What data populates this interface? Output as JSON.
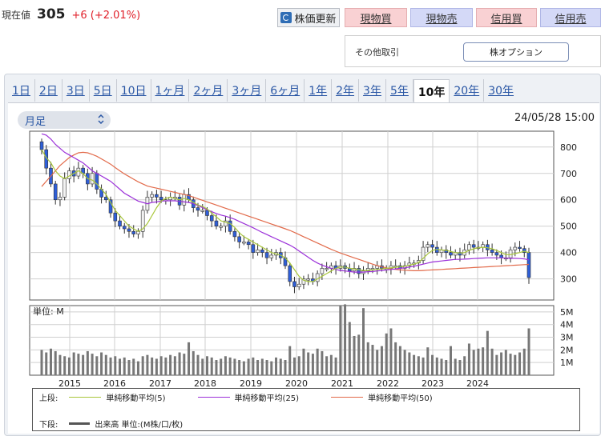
{
  "price": {
    "label": "現在値",
    "value": "305",
    "change": "+6 (+2.01%)"
  },
  "actions": {
    "refresh": "株価更新",
    "buy_spot": "現物買",
    "sell_spot": "現物売",
    "buy_margin": "信用買",
    "sell_margin": "信用売"
  },
  "other": {
    "label": "その他取引",
    "option_button": "株オプション"
  },
  "tabs": [
    "1日",
    "2日",
    "3日",
    "5日",
    "10日",
    "1ヶ月",
    "2ヶ月",
    "3ヶ月",
    "6ヶ月",
    "1年",
    "2年",
    "3年",
    "5年",
    "10年",
    "20年",
    "30年"
  ],
  "active_tab": "10年",
  "period_select": "月足",
  "datetime": "24/05/28 15:00",
  "volume_unit_label": "単位: M",
  "legend": {
    "upper_label": "上段:",
    "lower_label": "下段:",
    "ma5": "単純移動平均(5)",
    "ma25": "単純移動平均(25)",
    "ma50": "単純移動平均(50)",
    "volume": "出来高 単位:(M株/口/枚)"
  },
  "colors": {
    "ma5": "#a8c63a",
    "ma25": "#9b30d9",
    "ma50": "#e26a4a",
    "up": "#f2f2f2",
    "down": "#2f5fd8",
    "volume": "#777777"
  },
  "chart_data": {
    "type": "candlestick",
    "x_ticks": [
      "2015",
      "2016",
      "2017",
      "2018",
      "2019",
      "2020",
      "2021",
      "2022",
      "2023",
      "2024"
    ],
    "price_axis": {
      "ticks": [
        300,
        400,
        500,
        600,
        700,
        800
      ],
      "range": [
        220,
        860
      ]
    },
    "volume_axis": {
      "ticks": [
        "1M",
        "2M",
        "3M",
        "4M",
        "5M"
      ],
      "range": [
        0,
        5.5
      ]
    },
    "monthly_close": [
      790,
      720,
      660,
      600,
      610,
      680,
      710,
      690,
      720,
      700,
      660,
      700,
      640,
      610,
      600,
      550,
      520,
      500,
      490,
      480,
      470,
      480,
      560,
      610,
      620,
      610,
      600,
      600,
      610,
      610,
      580,
      620,
      600,
      570,
      560,
      560,
      540,
      520,
      500,
      500,
      520,
      480,
      460,
      440,
      440,
      430,
      400,
      410,
      400,
      380,
      390,
      400,
      380,
      350,
      290,
      270,
      280,
      300,
      300,
      290,
      320,
      340,
      340,
      350,
      340,
      350,
      340,
      330,
      340,
      320,
      330,
      340,
      340,
      350,
      340,
      340,
      350,
      350,
      340,
      350,
      360,
      360,
      370,
      420,
      430,
      420,
      400,
      410,
      400,
      390,
      400,
      390,
      410,
      430,
      420,
      420,
      430,
      410,
      400,
      390,
      380,
      380,
      410,
      420,
      415,
      400,
      305
    ],
    "ma5": [
      790,
      760,
      740,
      710,
      690,
      680,
      690,
      700,
      710,
      700,
      680,
      675,
      660,
      640,
      620,
      590,
      560,
      540,
      520,
      500,
      490,
      480,
      490,
      510,
      540,
      570,
      595,
      605,
      610,
      605,
      600,
      605,
      600,
      590,
      580,
      575,
      565,
      550,
      535,
      520,
      515,
      510,
      495,
      475,
      460,
      450,
      440,
      430,
      420,
      410,
      400,
      395,
      390,
      380,
      360,
      335,
      310,
      295,
      290,
      290,
      300,
      310,
      320,
      330,
      340,
      345,
      345,
      340,
      338,
      335,
      332,
      332,
      334,
      336,
      338,
      340,
      342,
      344,
      346,
      348,
      352,
      356,
      362,
      378,
      395,
      408,
      412,
      410,
      408,
      404,
      400,
      398,
      400,
      408,
      414,
      418,
      420,
      418,
      414,
      408,
      400,
      392,
      392,
      396,
      400,
      405,
      400
    ],
    "ma25": [
      850,
      845,
      830,
      810,
      795,
      780,
      770,
      760,
      750,
      740,
      725,
      710,
      700,
      690,
      680,
      670,
      655,
      640,
      625,
      615,
      605,
      595,
      590,
      585,
      590,
      592,
      595,
      596,
      596,
      596,
      594,
      592,
      590,
      585,
      578,
      570,
      562,
      555,
      548,
      542,
      538,
      532,
      526,
      518,
      510,
      502,
      494,
      485,
      476,
      468,
      460,
      452,
      444,
      436,
      428,
      418,
      406,
      394,
      382,
      370,
      360,
      352,
      346,
      340,
      336,
      332,
      330,
      328,
      326,
      326,
      326,
      327,
      328,
      330,
      332,
      334,
      336,
      338,
      340,
      342,
      345,
      348,
      352,
      356,
      360,
      364,
      366,
      368,
      370,
      372,
      374,
      374,
      375,
      376,
      377,
      378,
      379,
      380,
      380,
      380,
      380,
      379,
      378,
      378,
      377,
      376,
      372
    ],
    "ma50": [
      650,
      670,
      690,
      710,
      730,
      745,
      760,
      770,
      778,
      780,
      778,
      772,
      765,
      755,
      745,
      735,
      722,
      710,
      698,
      688,
      678,
      668,
      660,
      652,
      648,
      644,
      640,
      636,
      632,
      628,
      624,
      620,
      616,
      610,
      604,
      598,
      592,
      586,
      580,
      574,
      568,
      562,
      556,
      550,
      544,
      538,
      532,
      526,
      520,
      514,
      508,
      502,
      496,
      490,
      484,
      476,
      468,
      460,
      452,
      444,
      436,
      428,
      420,
      412,
      405,
      398,
      392,
      386,
      380,
      374,
      368,
      362,
      356,
      350,
      346,
      342,
      338,
      336,
      334,
      333,
      332,
      331,
      331,
      332,
      333,
      334,
      335,
      336,
      337,
      338,
      339,
      340,
      341,
      342,
      343,
      344,
      345,
      346,
      347,
      348,
      349,
      350,
      351,
      352,
      353,
      354,
      355
    ],
    "volume": [
      2.0,
      1.8,
      2.1,
      1.9,
      1.6,
      1.5,
      1.4,
      1.8,
      1.7,
      1.6,
      1.9,
      1.7,
      1.5,
      1.8,
      1.6,
      1.4,
      1.5,
      1.3,
      1.4,
      1.2,
      1.3,
      1.1,
      1.5,
      1.6,
      1.4,
      1.3,
      1.5,
      1.4,
      1.6,
      1.5,
      1.8,
      1.7,
      2.6,
      1.9,
      1.6,
      1.3,
      1.5,
      1.4,
      1.2,
      1.3,
      1.5,
      1.4,
      1.3,
      1.2,
      1.1,
      1.3,
      1.4,
      1.2,
      1.3,
      1.2,
      1.1,
      1.4,
      1.3,
      1.2,
      2.3,
      1.4,
      1.5,
      2.1,
      1.8,
      1.7,
      2.1,
      1.9,
      1.5,
      1.6,
      1.4,
      5.5,
      5.6,
      4.2,
      3.1,
      3.2,
      5.3,
      2.6,
      2.4,
      2.0,
      2.3,
      3.3,
      3.7,
      2.6,
      2.3,
      2.0,
      1.8,
      1.6,
      1.5,
      1.4,
      2.2,
      1.6,
      1.4,
      1.3,
      1.2,
      2.3,
      1.3,
      1.2,
      1.5,
      2.5,
      2.0,
      2.1,
      2.2,
      3.5,
      2.1,
      1.6,
      1.8,
      2.0,
      1.7,
      1.6,
      1.8,
      2.1,
      3.7
    ]
  }
}
